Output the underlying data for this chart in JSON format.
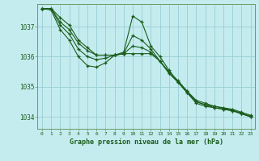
{
  "title": "Graphe pression niveau de la mer (hPa)",
  "background_color": "#c4ecee",
  "grid_color": "#98cdd4",
  "line_color": "#1a5c1a",
  "xlim": [
    -0.5,
    23.5
  ],
  "ylim": [
    1033.6,
    1037.75
  ],
  "yticks": [
    1034,
    1035,
    1036,
    1037
  ],
  "xticks": [
    0,
    1,
    2,
    3,
    4,
    5,
    6,
    7,
    8,
    9,
    10,
    11,
    12,
    13,
    14,
    15,
    16,
    17,
    18,
    19,
    20,
    21,
    22,
    23
  ],
  "series": [
    [
      1037.6,
      1037.6,
      1037.3,
      1037.05,
      1036.55,
      1036.3,
      1036.05,
      1036.05,
      1036.05,
      1036.1,
      1036.1,
      1036.1,
      1036.1,
      1035.85,
      1035.5,
      1035.2,
      1034.85,
      1034.5,
      1034.4,
      1034.35,
      1034.3,
      1034.25,
      1034.15,
      1034.05
    ],
    [
      1037.6,
      1037.6,
      1037.15,
      1036.9,
      1036.45,
      1036.2,
      1036.05,
      1036.05,
      1036.05,
      1036.1,
      1036.35,
      1036.3,
      1036.15,
      1035.85,
      1035.45,
      1035.15,
      1034.8,
      1034.45,
      1034.35,
      1034.3,
      1034.25,
      1034.2,
      1034.1,
      1034.0
    ],
    [
      1037.6,
      1037.6,
      1037.05,
      1036.75,
      1036.25,
      1036.0,
      1035.9,
      1035.95,
      1036.05,
      1036.1,
      1036.7,
      1036.55,
      1036.25,
      1035.85,
      1035.45,
      1035.15,
      1034.8,
      1034.5,
      1034.4,
      1034.3,
      1034.25,
      1034.2,
      1034.1,
      1034.0
    ],
    [
      1037.6,
      1037.55,
      1036.9,
      1036.55,
      1036.0,
      1035.7,
      1035.65,
      1035.8,
      1036.05,
      1036.15,
      1037.35,
      1037.15,
      1036.35,
      1036.0,
      1035.55,
      1035.15,
      1034.85,
      1034.55,
      1034.45,
      1034.35,
      1034.28,
      1034.22,
      1034.12,
      1034.02
    ]
  ]
}
